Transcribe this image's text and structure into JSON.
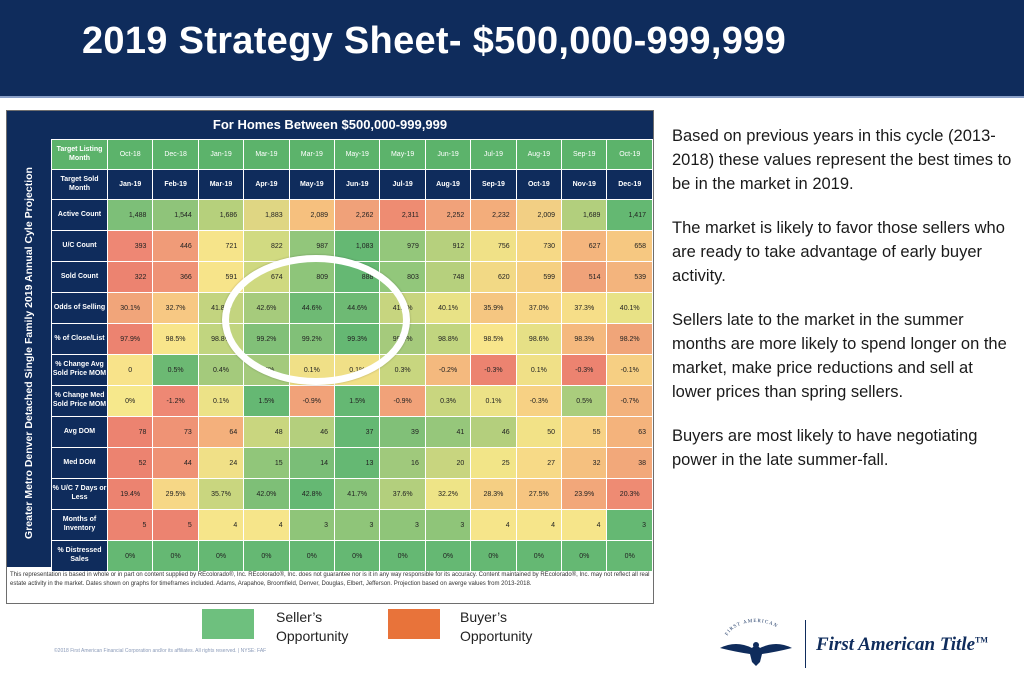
{
  "header": {
    "title": "2019 Strategy Sheet- $500,000-999,999"
  },
  "table": {
    "title": "For Homes Between $500,000-999,999",
    "side_label": "Greater Metro Denver Detached Single Family 2019 Annual Cyle Projection",
    "listing_label": "Target Listing Month",
    "sold_label": "Target Sold Month",
    "listing_months": [
      "Oct-18",
      "Dec-18",
      "Jan-19",
      "Mar-19",
      "Mar-19",
      "May-19",
      "May-19",
      "Jun-19",
      "Jul-19",
      "Aug-19",
      "Sep-19",
      "Oct-19"
    ],
    "sold_months": [
      "Jan-19",
      "Feb-19",
      "Mar-19",
      "Apr-19",
      "May-19",
      "Jun-19",
      "Jul-19",
      "Aug-19",
      "Sep-19",
      "Oct-19",
      "Nov-19",
      "Dec-19"
    ],
    "rows": [
      {
        "label": "Active Count",
        "values": [
          "1,488",
          "1,544",
          "1,686",
          "1,883",
          "2,089",
          "2,262",
          "2,311",
          "2,252",
          "2,232",
          "2,009",
          "1,689",
          "1,417"
        ],
        "colors": [
          "#7dbf78",
          "#8fc47a",
          "#b6d07c",
          "#dfd683",
          "#f6c07e",
          "#f0a179",
          "#ee8c72",
          "#f1a27a",
          "#f3ad7b",
          "#f2cf84",
          "#b2cf7d",
          "#64b872"
        ],
        "kind": "val"
      },
      {
        "label": "U/C Count",
        "values": [
          "393",
          "446",
          "721",
          "822",
          "987",
          "1,083",
          "979",
          "912",
          "756",
          "730",
          "627",
          "658"
        ],
        "colors": [
          "#ee8774",
          "#f09b78",
          "#f6e48a",
          "#d1da81",
          "#92c67b",
          "#65b873",
          "#94c77b",
          "#b6d07d",
          "#f0e187",
          "#f6d986",
          "#f4b57d",
          "#f6c881"
        ],
        "kind": "val"
      },
      {
        "label": "Sold Count",
        "values": [
          "322",
          "366",
          "591",
          "674",
          "809",
          "888",
          "803",
          "748",
          "620",
          "599",
          "514",
          "539"
        ],
        "colors": [
          "#ec8370",
          "#ef9276",
          "#f7e48a",
          "#cfd980",
          "#8ec57a",
          "#65b873",
          "#92c77b",
          "#b6d07d",
          "#f2d985",
          "#f5d082",
          "#f0a279",
          "#f3b47d"
        ],
        "kind": "val"
      },
      {
        "label": "Odds of Selling",
        "values": [
          "30.1%",
          "32.7%",
          "41.8%",
          "42.6%",
          "44.6%",
          "44.6%",
          "41.6%",
          "40.1%",
          "35.9%",
          "37.0%",
          "37.3%",
          "40.1%"
        ],
        "colors": [
          "#f1a57a",
          "#f7c883",
          "#c3d47f",
          "#a6cb7c",
          "#6eba74",
          "#6eba74",
          "#c7d57f",
          "#e8e286",
          "#f5c681",
          "#f7d786",
          "#f6de88",
          "#e8e286"
        ],
        "kind": "pct"
      },
      {
        "label": "% of Close/List",
        "values": [
          "97.9%",
          "98.5%",
          "98.8%",
          "99.2%",
          "99.2%",
          "99.3%",
          "99.0%",
          "98.8%",
          "98.5%",
          "98.6%",
          "98.3%",
          "98.2%"
        ],
        "colors": [
          "#ec8370",
          "#f8e58b",
          "#c1d57f",
          "#81c078",
          "#81c078",
          "#65b873",
          "#a5ca7c",
          "#c1d57f",
          "#f8e58b",
          "#e6e086",
          "#f5b97e",
          "#f0a579"
        ],
        "kind": "pct"
      },
      {
        "label": "% Change Avg Sold Price MOM",
        "values": [
          "0",
          "0.5%",
          "0.4%",
          "0.4%",
          "0.1%",
          "0.1%",
          "0.3%",
          "-0.2%",
          "-0.3%",
          "0.1%",
          "-0.3%",
          "-0.1%"
        ],
        "colors": [
          "#f8e38a",
          "#6cb973",
          "#a4ca7c",
          "#a4ca7c",
          "#f0e087",
          "#f0e087",
          "#c8d67f",
          "#f4b97e",
          "#ec8370",
          "#f0e087",
          "#ec8370",
          "#f6cf83"
        ],
        "kind": "pct"
      },
      {
        "label": "% Change Med Sold Price MOM",
        "values": [
          "0%",
          "-1.2%",
          "0.1%",
          "1.5%",
          "-0.9%",
          "1.5%",
          "-0.9%",
          "0.3%",
          "0.1%",
          "-0.3%",
          "0.5%",
          "-0.7%"
        ],
        "colors": [
          "#f6e88c",
          "#ee8874",
          "#ece287",
          "#65b873",
          "#f1a279",
          "#65b873",
          "#f1a279",
          "#c9d67f",
          "#ece287",
          "#f7d184",
          "#aacd7d",
          "#f3b27c"
        ],
        "kind": "pct"
      },
      {
        "label": "Avg DOM",
        "values": [
          "78",
          "73",
          "64",
          "48",
          "46",
          "37",
          "39",
          "41",
          "46",
          "50",
          "55",
          "63"
        ],
        "colors": [
          "#ec8370",
          "#ef9375",
          "#f4b07c",
          "#c9d67f",
          "#b4cf7d",
          "#65b873",
          "#81c078",
          "#96c77b",
          "#b4cf7d",
          "#f2e287",
          "#f7d285",
          "#f4b37c"
        ],
        "kind": "val"
      },
      {
        "label": "Med DOM",
        "values": [
          "52",
          "44",
          "24",
          "15",
          "14",
          "13",
          "16",
          "20",
          "25",
          "27",
          "32",
          "38"
        ],
        "colors": [
          "#ec8370",
          "#ef9275",
          "#f0e087",
          "#91c67a",
          "#7abe77",
          "#65b873",
          "#a0c97c",
          "#c8d57f",
          "#f2e588",
          "#f7da87",
          "#f5c07f",
          "#f2a87a"
        ],
        "kind": "val"
      },
      {
        "label": "% U/C 7 Days or Less",
        "values": [
          "19.4%",
          "29.5%",
          "35.7%",
          "42.0%",
          "42.8%",
          "41.7%",
          "37.6%",
          "32.2%",
          "28.3%",
          "27.5%",
          "23.9%",
          "20.3%"
        ],
        "colors": [
          "#ec8370",
          "#f6d786",
          "#c9d67f",
          "#7ebf77",
          "#65b873",
          "#88c379",
          "#b3cf7d",
          "#eee487",
          "#f5cf83",
          "#f6c581",
          "#f2a77a",
          "#ee8b73"
        ],
        "kind": "pct"
      },
      {
        "label": "Months of Inventory",
        "values": [
          "5",
          "5",
          "4",
          "4",
          "3",
          "3",
          "3",
          "3",
          "4",
          "4",
          "4",
          "3"
        ],
        "colors": [
          "#ec8370",
          "#ec8370",
          "#f6e58a",
          "#f6e58a",
          "#8fc579",
          "#8fc579",
          "#8fc579",
          "#8fc579",
          "#f6e58a",
          "#f6e58a",
          "#f6e58a",
          "#65b873"
        ],
        "kind": "val"
      },
      {
        "label": "% Distressed Sales",
        "values": [
          "0%",
          "0%",
          "0%",
          "0%",
          "0%",
          "0%",
          "0%",
          "0%",
          "0%",
          "0%",
          "0%",
          "0%"
        ],
        "colors": [
          "#65b873",
          "#65b873",
          "#65b873",
          "#65b873",
          "#65b873",
          "#65b873",
          "#65b873",
          "#65b873",
          "#65b873",
          "#65b873",
          "#65b873",
          "#65b873"
        ],
        "kind": "pct"
      }
    ],
    "disclaimer": "This representation is based in whole or in part on content supplied by REcolorado®, Inc. REcolorado®, Inc. does not guarantee nor is it in any way responsible for its accuracy. Content maintained by REcolorado®, Inc. may not reflect all real estate activity in the market. Dates shown on graphs for timeframes included. Adams, Arapahoe, Broomfield, Denver, Douglas, Elbert, Jefferson. Projection based on averge values from 2013-2018."
  },
  "notes": [
    "Based on previous years in this cycle (2013-2018) these values represent the best times to be in the market in 2019.",
    "The market is likely to favor those sellers who are ready to take advantage of early buyer activity.",
    "Sellers late to the market in the summer months are more likely to spend longer on the market, make price reductions and sell at lower prices than spring sellers.",
    "Buyers are most likely to have negotiating power in the late summer-fall."
  ],
  "legend": {
    "seller_line1": "Seller’s",
    "seller_line2": "Opportunity",
    "seller_color": "#6ec07e",
    "buyer_line1": "Buyer’s",
    "buyer_line2": "Opportunity",
    "buyer_color": "#e8733a"
  },
  "footer": {
    "copyright": "©2018 First American Financial Corporation and/or its affiliates. All rights reserved. | NYSE: FAF",
    "brand_name": "First American Title",
    "brand_mark": "TM",
    "eagle_text": "FIRST AMERICAN"
  },
  "colors": {
    "navy": "#0f2c5c",
    "white": "#ffffff"
  }
}
